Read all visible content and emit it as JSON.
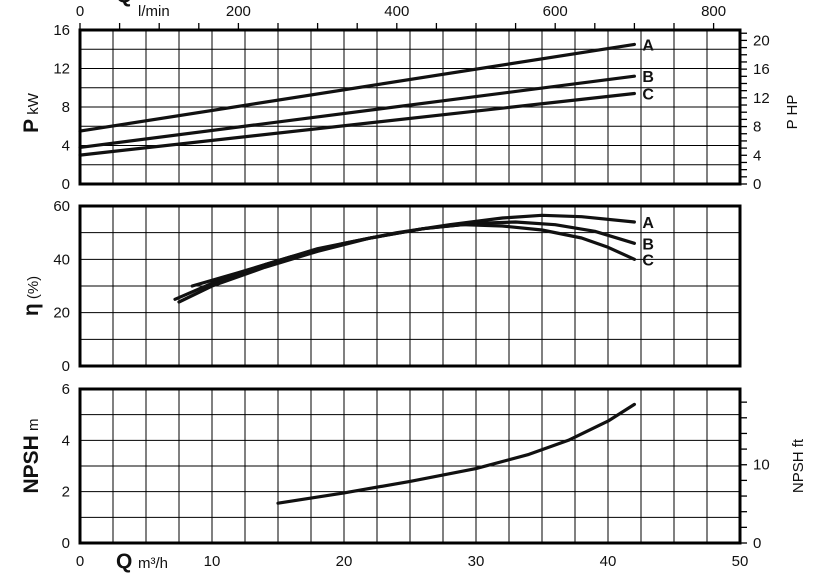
{
  "chart_data": [
    {
      "panel": "power",
      "type": "line",
      "top_axis": {
        "label": "Q",
        "unit": "l/min",
        "ticks": [
          0,
          200,
          400,
          600,
          800
        ]
      },
      "xlim": [
        0,
        50
      ],
      "ylabel": "P",
      "ylabel_unit": "kW",
      "ylim": [
        0,
        16
      ],
      "yticks": [
        0,
        4,
        8,
        12,
        16
      ],
      "y2label": "P HP",
      "y2lim": [
        0,
        21.45
      ],
      "y2ticks": [
        0,
        4,
        8,
        12,
        16,
        20
      ],
      "grid": true,
      "series": [
        {
          "name": "A",
          "x": [
            0,
            42
          ],
          "y": [
            5.5,
            14.5
          ]
        },
        {
          "name": "B",
          "x": [
            0,
            42
          ],
          "y": [
            3.8,
            11.2
          ]
        },
        {
          "name": "C",
          "x": [
            0,
            42
          ],
          "y": [
            3.0,
            9.4
          ]
        }
      ]
    },
    {
      "panel": "efficiency",
      "type": "line",
      "xlim": [
        0,
        50
      ],
      "ylabel": "η",
      "ylabel_unit": "(%)",
      "ylim": [
        0,
        60
      ],
      "yticks": [
        0,
        20,
        40,
        60
      ],
      "grid": true,
      "series": [
        {
          "name": "A",
          "x": [
            8.5,
            12,
            16,
            20,
            24,
            28,
            32,
            35,
            38,
            42
          ],
          "y": [
            30,
            35,
            41,
            46,
            50,
            53,
            55.5,
            56.5,
            56,
            54
          ]
        },
        {
          "name": "B",
          "x": [
            7.2,
            10,
            14,
            18,
            22,
            26,
            30,
            33,
            36,
            39,
            42
          ],
          "y": [
            25,
            31,
            38,
            44,
            48,
            51.5,
            53.5,
            54,
            53,
            50.5,
            46
          ]
        },
        {
          "name": "C",
          "x": [
            7.5,
            10,
            14,
            18,
            22,
            26,
            29,
            32,
            35,
            38,
            40,
            42
          ],
          "y": [
            24,
            30,
            37,
            43,
            48,
            51.5,
            53,
            52.5,
            51,
            48,
            44.5,
            40
          ]
        }
      ]
    },
    {
      "panel": "npsh",
      "type": "line",
      "xlabel": "Q",
      "xlabel_unit": "m³/h",
      "xlim": [
        0,
        50
      ],
      "xticks": [
        0,
        10,
        20,
        30,
        40,
        50
      ],
      "ylabel": "NPSH",
      "ylabel_unit": "m",
      "ylim": [
        0,
        6
      ],
      "yticks": [
        0,
        2,
        4,
        6
      ],
      "y2label": "NPSH ft",
      "y2lim": [
        0,
        19.68
      ],
      "y2ticks": [
        0,
        10
      ],
      "grid": true,
      "series": [
        {
          "x": [
            15,
            20,
            25,
            30,
            34,
            37,
            40,
            42
          ],
          "y": [
            1.55,
            1.95,
            2.4,
            2.9,
            3.45,
            4.0,
            4.75,
            5.4
          ]
        }
      ]
    }
  ]
}
